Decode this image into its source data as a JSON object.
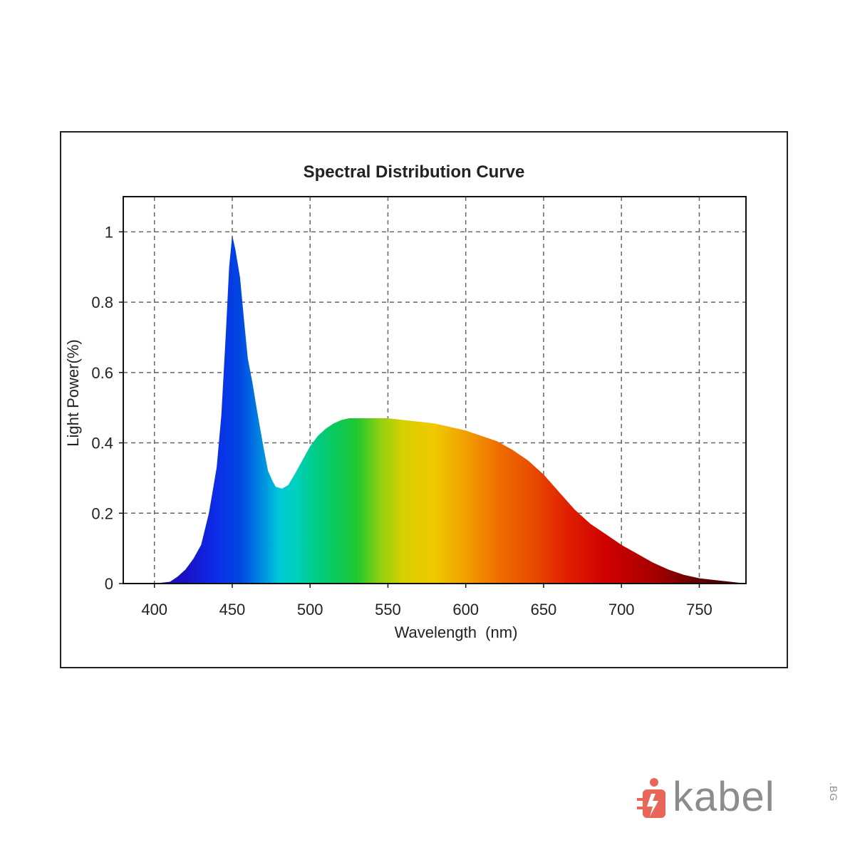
{
  "chart_data": {
    "type": "area",
    "title": "Spectral Distribution Curve",
    "xlabel": "Wavelength  (nm)",
    "ylabel": "Light Power(%)",
    "xlim": [
      380,
      780
    ],
    "ylim": [
      0,
      1.1
    ],
    "xticks": [
      400,
      450,
      500,
      550,
      600,
      650,
      700,
      750
    ],
    "xtick_labels": [
      "400",
      "450",
      "500",
      "550",
      "600",
      "650",
      "700",
      "750"
    ],
    "yticks": [
      0,
      0.2,
      0.4,
      0.6,
      0.8,
      1
    ],
    "ytick_labels": [
      "0",
      "0.2",
      "0.4",
      "0.6",
      "0.8",
      "1"
    ],
    "grid": true,
    "fill": "visible-spectrum gradient",
    "series": [
      {
        "x": [
          380,
          400,
          410,
          415,
          420,
          425,
          430,
          435,
          440,
          443,
          446,
          448,
          450,
          452,
          455,
          458,
          460,
          463,
          466,
          470,
          473,
          476,
          478,
          482,
          486,
          490,
          495,
          500,
          505,
          510,
          515,
          520,
          525,
          530,
          535,
          540,
          545,
          550,
          560,
          570,
          580,
          590,
          600,
          610,
          620,
          630,
          640,
          650,
          660,
          670,
          680,
          690,
          700,
          710,
          720,
          730,
          740,
          750,
          760,
          770,
          780
        ],
        "y": [
          0.0,
          0.0,
          0.005,
          0.02,
          0.04,
          0.07,
          0.11,
          0.2,
          0.33,
          0.48,
          0.72,
          0.9,
          0.99,
          0.95,
          0.87,
          0.73,
          0.64,
          0.57,
          0.49,
          0.39,
          0.32,
          0.29,
          0.275,
          0.27,
          0.28,
          0.31,
          0.35,
          0.39,
          0.42,
          0.44,
          0.455,
          0.465,
          0.47,
          0.47,
          0.47,
          0.47,
          0.47,
          0.47,
          0.465,
          0.46,
          0.455,
          0.445,
          0.435,
          0.42,
          0.405,
          0.38,
          0.35,
          0.31,
          0.26,
          0.21,
          0.17,
          0.14,
          0.11,
          0.085,
          0.06,
          0.04,
          0.025,
          0.015,
          0.01,
          0.005,
          0.0
        ]
      }
    ]
  },
  "watermark": {
    "brand": "kabel",
    "suffix": ".BG",
    "color": "#8c8c8c",
    "accent": "#e8675a"
  }
}
